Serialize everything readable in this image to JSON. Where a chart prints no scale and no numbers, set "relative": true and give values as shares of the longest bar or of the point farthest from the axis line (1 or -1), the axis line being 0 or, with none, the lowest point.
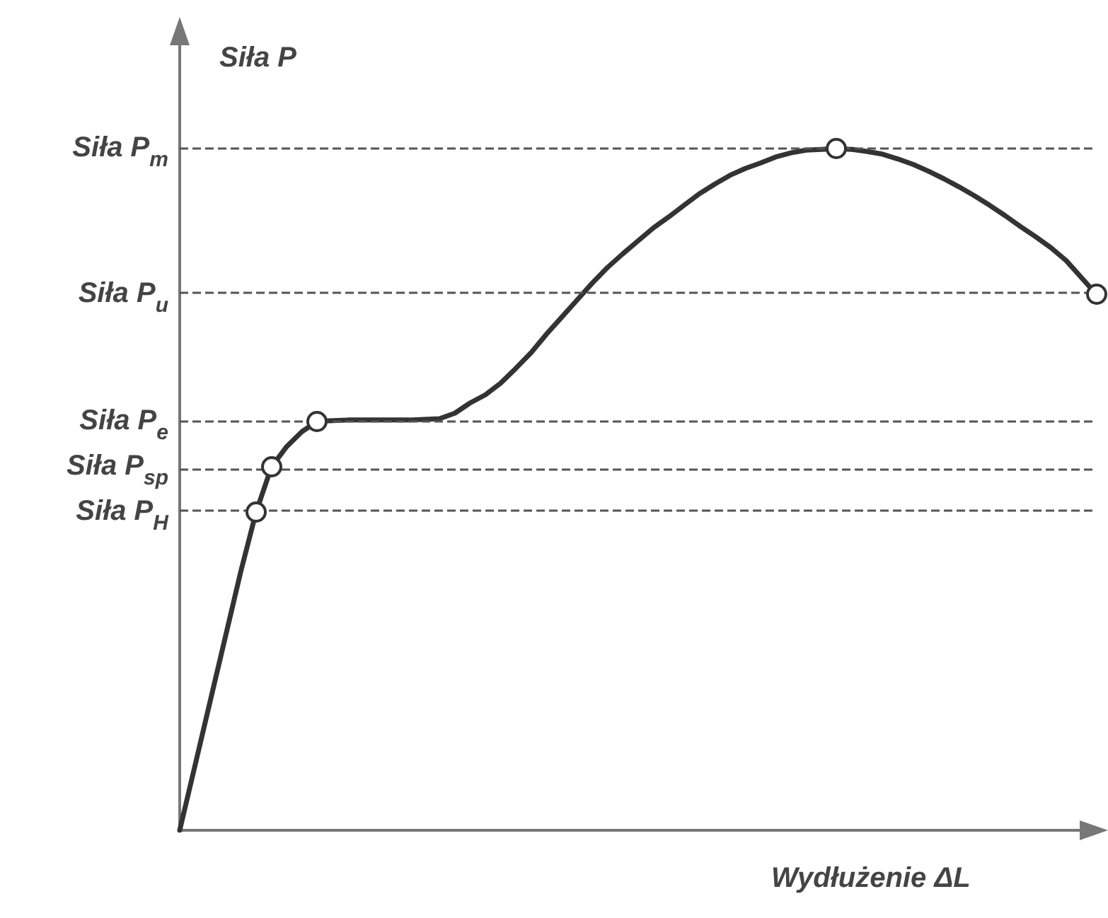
{
  "chart_data": {
    "type": "line",
    "relative": true,
    "ylabel": "Siła P",
    "xlabel": "Wydłużenie ΔL",
    "categories": [
      null,
      null,
      null,
      null,
      null,
      null,
      null,
      null,
      null,
      null,
      null,
      null,
      null,
      null,
      null,
      null,
      null,
      null,
      null,
      null,
      null,
      null,
      null,
      null,
      null,
      null,
      null,
      null,
      null,
      null,
      null,
      null,
      null,
      null,
      null,
      null,
      null,
      null,
      null,
      null,
      null,
      null,
      null,
      null,
      null,
      null,
      null,
      null,
      null,
      null,
      null,
      null,
      null,
      null,
      null,
      null,
      null,
      null,
      null,
      null,
      null
    ],
    "grid": false,
    "series": [
      {
        "color": "#333333",
        "values": [
          0,
          0.095,
          0.19,
          0.285,
          0.38,
          0.467,
          0.533,
          0.563,
          0.585,
          0.6,
          0.601,
          0.602,
          0.602,
          0.602,
          0.602,
          0.602,
          0.603,
          0.604,
          0.612,
          0.627,
          0.639,
          0.656,
          0.678,
          0.701,
          0.728,
          0.753,
          0.778,
          0.803,
          0.826,
          0.846,
          0.865,
          0.884,
          0.9,
          0.917,
          0.934,
          0.948,
          0.961,
          0.971,
          0.979,
          0.988,
          0.994,
          0.998,
          0.999,
          1,
          0.999,
          0.996,
          0.992,
          0.985,
          0.977,
          0.967,
          0.956,
          0.944,
          0.931,
          0.917,
          0.902,
          0.886,
          0.871,
          0.855,
          0.836,
          0.811,
          0.786
        ],
        "line_style": "solid"
      }
    ],
    "ref_lines": [
      {
        "axis": "y",
        "value": 1,
        "label": "Siła P$_{m}$",
        "line_style": "dashed",
        "color": "#555555"
      },
      {
        "axis": "y",
        "value": 0.786,
        "label": "Siła P$_{u}$",
        "line_style": "dashed",
        "color": "#555555"
      },
      {
        "axis": "y",
        "value": 0.6,
        "label": "Siła P$_{e}$",
        "line_style": "dashed",
        "color": "#555555"
      },
      {
        "axis": "y",
        "value": 0.533,
        "label": "Siła P$_{sp}$",
        "line_style": "dashed",
        "color": "#555555"
      },
      {
        "axis": "y",
        "value": 0.467,
        "label": "Siła P$_{H}$",
        "line_style": "dashed",
        "color": "#555555"
      }
    ]
  }
}
